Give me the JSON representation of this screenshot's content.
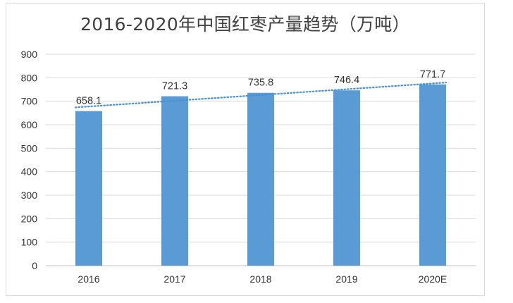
{
  "chart_data": {
    "type": "bar",
    "title": "2016-2020年中国红枣产量趋势（万吨）",
    "categories": [
      "2016",
      "2017",
      "2018",
      "2019",
      "2020E"
    ],
    "values": [
      658.1,
      721.3,
      735.8,
      746.4,
      771.7
    ],
    "data_labels": [
      "658.1",
      "721.3",
      "735.8",
      "746.4",
      "771.7"
    ],
    "yticks": [
      "0",
      "100",
      "200",
      "300",
      "400",
      "500",
      "600",
      "700",
      "800",
      "900"
    ],
    "ylim": [
      0,
      900
    ],
    "ytick_step": 100,
    "xlabel": "",
    "ylabel": "",
    "grid": true,
    "trendline": "linear",
    "trendline_style": "dotted",
    "bar_color": "#5b9bd5",
    "trend_color": "#4a8fcf",
    "grid_color": "#d9d9d9"
  }
}
